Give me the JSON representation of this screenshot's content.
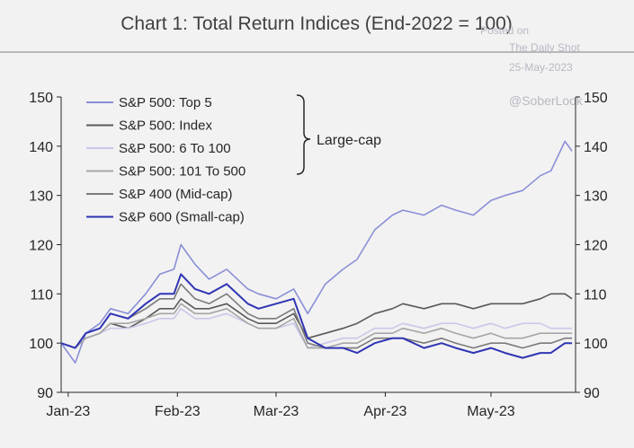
{
  "chart_data": {
    "type": "line",
    "title": "Chart 1: Total Return Indices (End-2022 = 100)",
    "xlabel": "",
    "ylabel": "",
    "ylim": [
      90,
      150
    ],
    "yticks": [
      90,
      100,
      110,
      120,
      130,
      140,
      150
    ],
    "xlim": [
      "2022-12-30",
      "2023-05-25"
    ],
    "xticks": [
      {
        "date": "2023-01-01",
        "label": "Jan-23"
      },
      {
        "date": "2023-02-01",
        "label": "Feb-23"
      },
      {
        "date": "2023-03-01",
        "label": "Mar-23"
      },
      {
        "date": "2023-04-01",
        "label": "Apr-23"
      },
      {
        "date": "2023-05-01",
        "label": "May-23"
      }
    ],
    "grid": false,
    "legend_position": "top-left",
    "annotation": "Large-cap",
    "series": [
      {
        "name": "S&P 500: Top 5",
        "color": "#8a8fd6",
        "x": [
          "2022-12-30",
          "2023-01-03",
          "2023-01-06",
          "2023-01-10",
          "2023-01-13",
          "2023-01-18",
          "2023-01-23",
          "2023-01-27",
          "2023-01-31",
          "2023-02-02",
          "2023-02-06",
          "2023-02-10",
          "2023-02-15",
          "2023-02-21",
          "2023-02-24",
          "2023-03-01",
          "2023-03-06",
          "2023-03-10",
          "2023-03-15",
          "2023-03-20",
          "2023-03-24",
          "2023-03-29",
          "2023-04-03",
          "2023-04-06",
          "2023-04-12",
          "2023-04-17",
          "2023-04-21",
          "2023-04-26",
          "2023-05-01",
          "2023-05-05",
          "2023-05-10",
          "2023-05-15",
          "2023-05-18",
          "2023-05-22",
          "2023-05-24"
        ],
        "values": [
          100,
          96,
          102,
          104,
          107,
          106,
          110,
          114,
          115,
          120,
          116,
          113,
          115,
          111,
          110,
          109,
          111,
          106,
          112,
          115,
          117,
          123,
          126,
          127,
          126,
          128,
          127,
          126,
          129,
          130,
          131,
          134,
          135,
          141,
          139
        ]
      },
      {
        "name": "S&P 500: Index",
        "color": "#595959",
        "x": [
          "2022-12-30",
          "2023-01-03",
          "2023-01-06",
          "2023-01-10",
          "2023-01-13",
          "2023-01-18",
          "2023-01-23",
          "2023-01-27",
          "2023-01-31",
          "2023-02-02",
          "2023-02-06",
          "2023-02-10",
          "2023-02-15",
          "2023-02-21",
          "2023-02-24",
          "2023-03-01",
          "2023-03-06",
          "2023-03-10",
          "2023-03-15",
          "2023-03-20",
          "2023-03-24",
          "2023-03-29",
          "2023-04-03",
          "2023-04-06",
          "2023-04-12",
          "2023-04-17",
          "2023-04-21",
          "2023-04-26",
          "2023-05-01",
          "2023-05-05",
          "2023-05-10",
          "2023-05-15",
          "2023-05-18",
          "2023-05-22",
          "2023-05-24"
        ],
        "values": [
          100,
          99,
          101,
          102,
          104,
          103,
          105,
          107,
          107,
          109,
          107,
          107,
          108,
          105,
          104,
          104,
          106,
          101,
          102,
          103,
          104,
          106,
          107,
          108,
          107,
          108,
          108,
          107,
          108,
          108,
          108,
          109,
          110,
          110,
          109
        ]
      },
      {
        "name": "S&P 500: 6 To 100",
        "color": "#c8c8ea",
        "x": [
          "2022-12-30",
          "2023-01-03",
          "2023-01-06",
          "2023-01-10",
          "2023-01-13",
          "2023-01-18",
          "2023-01-23",
          "2023-01-27",
          "2023-01-31",
          "2023-02-02",
          "2023-02-06",
          "2023-02-10",
          "2023-02-15",
          "2023-02-21",
          "2023-02-24",
          "2023-03-01",
          "2023-03-06",
          "2023-03-10",
          "2023-03-15",
          "2023-03-20",
          "2023-03-24",
          "2023-03-29",
          "2023-04-03",
          "2023-04-06",
          "2023-04-12",
          "2023-04-17",
          "2023-04-21",
          "2023-04-26",
          "2023-05-01",
          "2023-05-05",
          "2023-05-10",
          "2023-05-15",
          "2023-05-18",
          "2023-05-22",
          "2023-05-24"
        ],
        "values": [
          100,
          99,
          101,
          102,
          103,
          103,
          104,
          105,
          105,
          107,
          105,
          105,
          106,
          104,
          103,
          103,
          104,
          99,
          100,
          101,
          101,
          103,
          103,
          104,
          103,
          104,
          104,
          103,
          104,
          103,
          104,
          104,
          103,
          103,
          103
        ]
      },
      {
        "name": "S&P 500: 101 To 500",
        "color": "#a6a6a6",
        "x": [
          "2022-12-30",
          "2023-01-03",
          "2023-01-06",
          "2023-01-10",
          "2023-01-13",
          "2023-01-18",
          "2023-01-23",
          "2023-01-27",
          "2023-01-31",
          "2023-02-02",
          "2023-02-06",
          "2023-02-10",
          "2023-02-15",
          "2023-02-21",
          "2023-02-24",
          "2023-03-01",
          "2023-03-06",
          "2023-03-10",
          "2023-03-15",
          "2023-03-20",
          "2023-03-24",
          "2023-03-29",
          "2023-04-03",
          "2023-04-06",
          "2023-04-12",
          "2023-04-17",
          "2023-04-21",
          "2023-04-26",
          "2023-05-01",
          "2023-05-05",
          "2023-05-10",
          "2023-05-15",
          "2023-05-18",
          "2023-05-22",
          "2023-05-24"
        ],
        "values": [
          100,
          99,
          101,
          102,
          104,
          104,
          105,
          106,
          106,
          108,
          106,
          106,
          107,
          104,
          103,
          103,
          105,
          99,
          99,
          100,
          100,
          102,
          102,
          103,
          102,
          103,
          102,
          101,
          102,
          101,
          101,
          102,
          102,
          102,
          102
        ]
      },
      {
        "name": "S&P 400 (Mid-cap)",
        "color": "#7a7a7a",
        "x": [
          "2022-12-30",
          "2023-01-03",
          "2023-01-06",
          "2023-01-10",
          "2023-01-13",
          "2023-01-18",
          "2023-01-23",
          "2023-01-27",
          "2023-01-31",
          "2023-02-02",
          "2023-02-06",
          "2023-02-10",
          "2023-02-15",
          "2023-02-21",
          "2023-02-24",
          "2023-03-01",
          "2023-03-06",
          "2023-03-10",
          "2023-03-15",
          "2023-03-20",
          "2023-03-24",
          "2023-03-29",
          "2023-04-03",
          "2023-04-06",
          "2023-04-12",
          "2023-04-17",
          "2023-04-21",
          "2023-04-26",
          "2023-05-01",
          "2023-05-05",
          "2023-05-10",
          "2023-05-15",
          "2023-05-18",
          "2023-05-22",
          "2023-05-24"
        ],
        "values": [
          100,
          99,
          102,
          103,
          106,
          105,
          107,
          109,
          109,
          112,
          109,
          108,
          110,
          106,
          105,
          105,
          107,
          100,
          99,
          99,
          99,
          101,
          101,
          101,
          100,
          101,
          100,
          99,
          100,
          100,
          99,
          100,
          100,
          101,
          101
        ]
      },
      {
        "name": "S&P 600 (Small-cap)",
        "color": "#2f34b4",
        "x": [
          "2022-12-30",
          "2023-01-03",
          "2023-01-06",
          "2023-01-10",
          "2023-01-13",
          "2023-01-18",
          "2023-01-23",
          "2023-01-27",
          "2023-01-31",
          "2023-02-02",
          "2023-02-06",
          "2023-02-10",
          "2023-02-15",
          "2023-02-21",
          "2023-02-24",
          "2023-03-01",
          "2023-03-06",
          "2023-03-10",
          "2023-03-15",
          "2023-03-20",
          "2023-03-24",
          "2023-03-29",
          "2023-04-03",
          "2023-04-06",
          "2023-04-12",
          "2023-04-17",
          "2023-04-21",
          "2023-04-26",
          "2023-05-01",
          "2023-05-05",
          "2023-05-10",
          "2023-05-15",
          "2023-05-18",
          "2023-05-22",
          "2023-05-24"
        ],
        "values": [
          100,
          99,
          102,
          103,
          106,
          105,
          108,
          110,
          110,
          114,
          111,
          110,
          112,
          108,
          107,
          108,
          109,
          101,
          99,
          99,
          98,
          100,
          101,
          101,
          99,
          100,
          99,
          98,
          99,
          98,
          97,
          98,
          98,
          100,
          100
        ]
      }
    ]
  },
  "watermark": {
    "posted": "Posted on",
    "source": "The Daily Shot",
    "date": "25-May-2023",
    "handle": "@SoberLook"
  },
  "colors": {
    "background": "#f2f2f2",
    "axis": "#262626",
    "title_rule": "#7f7f7f"
  }
}
